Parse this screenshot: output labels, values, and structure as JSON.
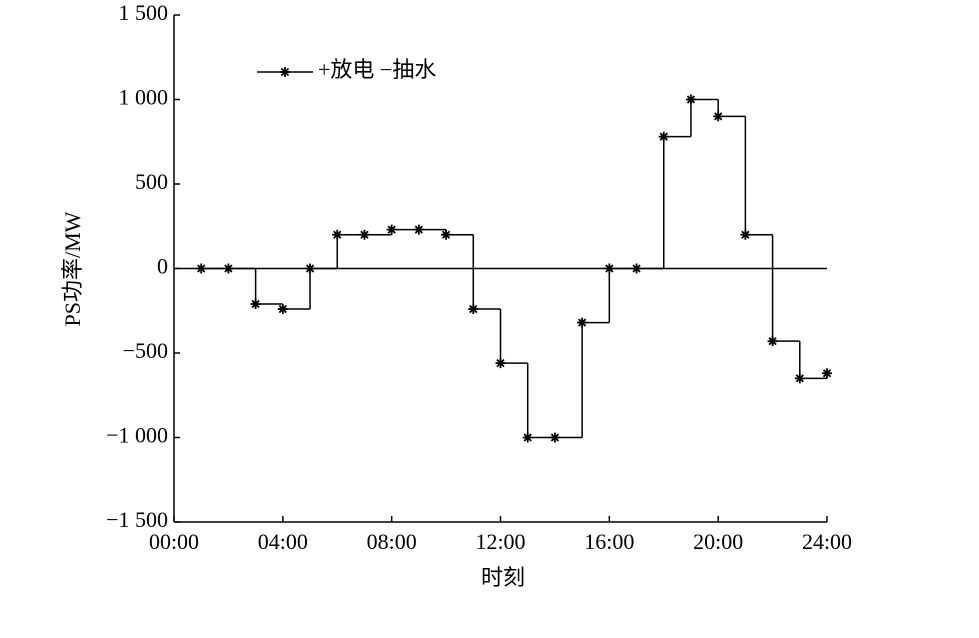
{
  "chart_data": {
    "type": "line",
    "step": "post",
    "y_label": "PS功率/MW",
    "x_label": "时刻",
    "x": [
      1,
      2,
      3,
      4,
      5,
      6,
      7,
      8,
      9,
      10,
      11,
      12,
      13,
      14,
      15,
      16,
      17,
      18,
      19,
      20,
      21,
      22,
      23,
      24
    ],
    "series": [
      {
        "name": "+放电 −抽水",
        "color": "#000000",
        "values": [
          0,
          0,
          -210,
          -240,
          0,
          200,
          200,
          230,
          230,
          200,
          -240,
          -560,
          -1000,
          -1000,
          -320,
          0,
          0,
          780,
          1000,
          900,
          200,
          -430,
          -650,
          -620
        ]
      }
    ],
    "xlim": [
      0,
      24
    ],
    "xticks": [
      {
        "value": 0,
        "label": "00:00"
      },
      {
        "value": 4,
        "label": "04:00"
      },
      {
        "value": 8,
        "label": "08:00"
      },
      {
        "value": 12,
        "label": "12:00"
      },
      {
        "value": 16,
        "label": "16:00"
      },
      {
        "value": 20,
        "label": "20:00"
      },
      {
        "value": 24,
        "label": "24:00"
      }
    ],
    "ylim": [
      -1500,
      1500
    ],
    "yticks": [
      {
        "value": -1500,
        "label": "−1 500"
      },
      {
        "value": -1000,
        "label": "−1 000"
      },
      {
        "value": -500,
        "label": "−500"
      },
      0,
      500,
      {
        "value": 1000,
        "label": "1 000"
      },
      {
        "value": 1500,
        "label": "1 500"
      }
    ],
    "zero_line": true,
    "legend": "upper left"
  }
}
